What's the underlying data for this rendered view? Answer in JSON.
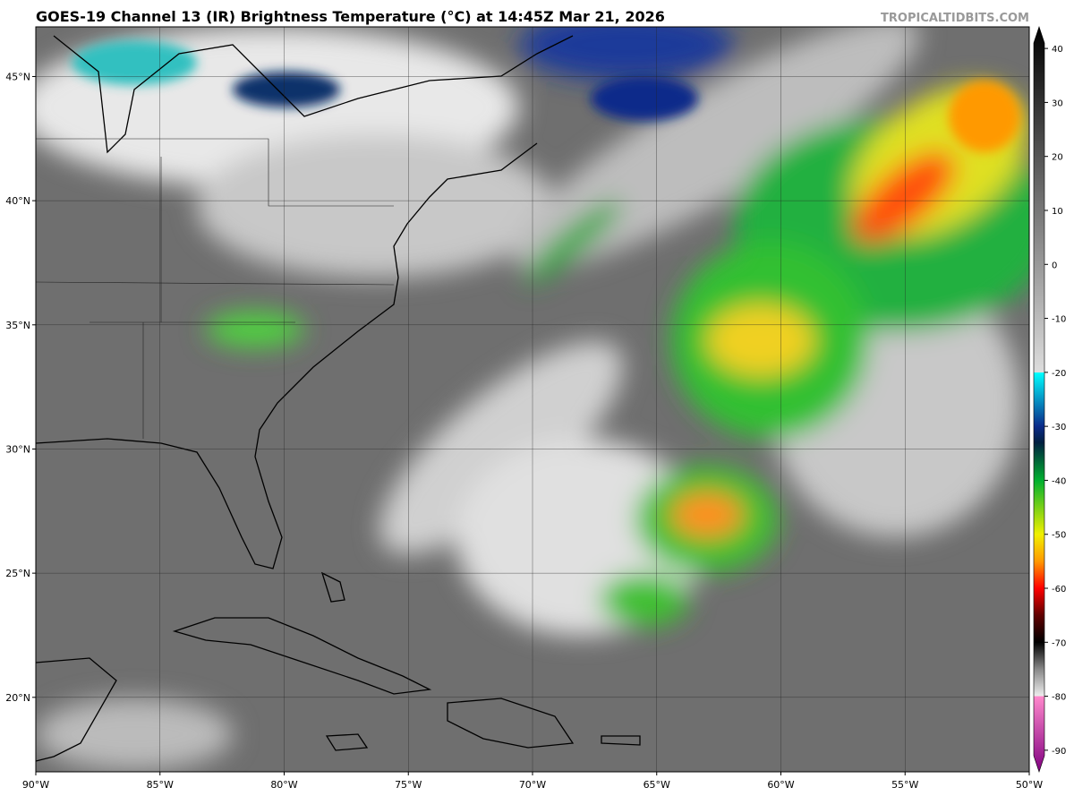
{
  "header": {
    "title": "GOES-19 Channel 13 (IR) Brightness Temperature (°C) at 14:45Z Mar 21, 2026",
    "watermark": "TROPICALTIDBITS.COM"
  },
  "map": {
    "xlim": [
      -90,
      -50
    ],
    "ylim": [
      17,
      47
    ],
    "xticks": [
      {
        "value": -90,
        "label": "90°W"
      },
      {
        "value": -85,
        "label": "85°W"
      },
      {
        "value": -80,
        "label": "80°W"
      },
      {
        "value": -75,
        "label": "75°W"
      },
      {
        "value": -70,
        "label": "70°W"
      },
      {
        "value": -65,
        "label": "65°W"
      },
      {
        "value": -60,
        "label": "60°W"
      },
      {
        "value": -55,
        "label": "55°W"
      },
      {
        "value": -50,
        "label": "50°W"
      }
    ],
    "yticks": [
      {
        "value": 20,
        "label": "20°N"
      },
      {
        "value": 25,
        "label": "25°N"
      },
      {
        "value": 30,
        "label": "30°N"
      },
      {
        "value": 35,
        "label": "35°N"
      },
      {
        "value": 40,
        "label": "40°N"
      },
      {
        "value": 45,
        "label": "45°N"
      }
    ],
    "grid": true
  },
  "colorbar": {
    "lim": [
      -94,
      44
    ],
    "ticks": [
      40,
      30,
      20,
      10,
      0,
      -10,
      -20,
      -30,
      -40,
      -50,
      -60,
      -70,
      -80,
      -90
    ],
    "colormap": [
      [
        44,
        "#000000"
      ],
      [
        20,
        "#555555"
      ],
      [
        -20,
        "#dddddd"
      ],
      [
        -20,
        "#00ffff"
      ],
      [
        -30,
        "#0a2a8a"
      ],
      [
        -33,
        "#002040"
      ],
      [
        -40,
        "#00b030"
      ],
      [
        -50,
        "#f0f000"
      ],
      [
        -55,
        "#ff9900"
      ],
      [
        -60,
        "#ff0000"
      ],
      [
        -65,
        "#600000"
      ],
      [
        -70,
        "#000000"
      ],
      [
        -75,
        "#888888"
      ],
      [
        -80,
        "#eeeeee"
      ],
      [
        -80,
        "#ff88cc"
      ],
      [
        -94,
        "#800080"
      ]
    ]
  }
}
